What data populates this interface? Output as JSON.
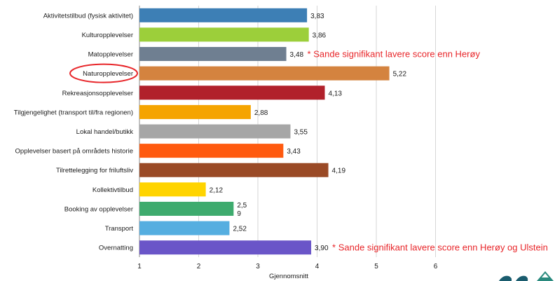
{
  "chart_data": {
    "type": "bar",
    "orientation": "horizontal",
    "categories": [
      "Aktivitetstilbud (fysisk aktivitet)",
      "Kulturopplevelser",
      "Matopplevelser",
      "Naturopplevelser",
      "Rekreasjonsopplevelser",
      "Tilgjengelighet (transport til/fra regionen)",
      "Lokal handel/butikk",
      "Opplevelser basert på områdets historie",
      "Tilrettelegging for friluftsliv",
      "Kollektivtilbud",
      "Booking av opplevelser",
      "Transport",
      "Overnatting"
    ],
    "values": [
      3.83,
      3.86,
      3.48,
      5.22,
      4.13,
      2.88,
      3.55,
      3.43,
      4.19,
      2.12,
      2.59,
      2.52,
      3.9
    ],
    "value_labels": [
      [
        "3,83"
      ],
      [
        "3,86"
      ],
      [
        "3,48"
      ],
      [
        "5,22"
      ],
      [
        "4,13"
      ],
      [
        "2,88"
      ],
      [
        "3,55"
      ],
      [
        "3,43"
      ],
      [
        "4,19"
      ],
      [
        "2,12"
      ],
      [
        "2,5",
        "9"
      ],
      [
        "2,52"
      ],
      [
        "3,90"
      ]
    ],
    "colors": [
      "#3d7fb5",
      "#9ccf3a",
      "#6f7f91",
      "#d4833f",
      "#b1212b",
      "#f5a400",
      "#a6a6a6",
      "#ff5a0f",
      "#9a4a26",
      "#ffd400",
      "#3eab6e",
      "#55aee0",
      "#6a55c8"
    ],
    "xlim": [
      1,
      7
    ],
    "xticks": [
      1,
      2,
      3,
      4,
      5,
      6
    ],
    "xlabel": "Gjennomsnitt",
    "ylabel": "",
    "title": "",
    "grid": true,
    "highlighted_category": "Naturopplevelser",
    "annotations": [
      {
        "category": "Matopplevelser",
        "text": "* Sande signifikant lavere score enn Herøy"
      },
      {
        "category": "Overnatting",
        "text": "* Sande signifikant lavere score enn Herøy og Ulstein"
      }
    ]
  }
}
